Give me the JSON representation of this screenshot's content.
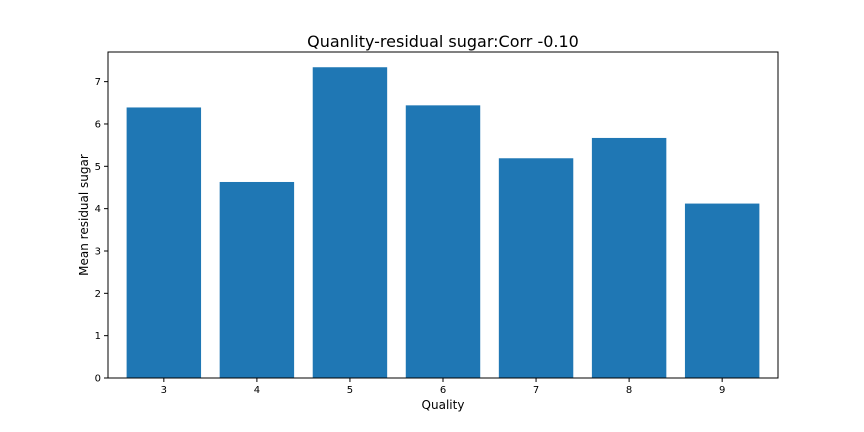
{
  "chart_data": {
    "type": "bar",
    "title": "Quanlity-residual sugar:Corr -0.10",
    "xlabel": "Quality",
    "ylabel": "Mean residual sugar",
    "categories": [
      "3",
      "4",
      "5",
      "6",
      "7",
      "8",
      "9"
    ],
    "values": [
      6.39,
      4.63,
      7.34,
      6.44,
      5.19,
      5.67,
      4.12
    ],
    "ylim": [
      0,
      7.7
    ],
    "yticks": [
      "0",
      "1",
      "2",
      "3",
      "4",
      "5",
      "6",
      "7"
    ],
    "bar_color": "#1f77b4",
    "grid": false,
    "legend": "none"
  }
}
